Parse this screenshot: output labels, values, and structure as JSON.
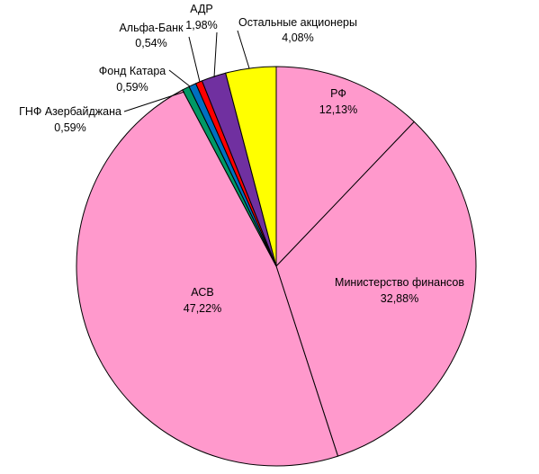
{
  "chart_data": {
    "type": "pie",
    "start_angle": "12 o'clock",
    "direction": "clockwise",
    "slices": [
      {
        "name": "РФ",
        "value": 12.13,
        "label": "12,13%",
        "color": "#FF99CC"
      },
      {
        "name": "Министерство финансов",
        "value": 32.88,
        "label": "32,88%",
        "color": "#FF99CC"
      },
      {
        "name": "АСВ",
        "value": 47.22,
        "label": "47,22%",
        "color": "#FF99CC"
      },
      {
        "name": "ГНФ Азербайджана",
        "value": 0.59,
        "label": "0,59%",
        "color": "#009966"
      },
      {
        "name": "Фонд Катара",
        "value": 0.59,
        "label": "0,59%",
        "color": "#0070C0"
      },
      {
        "name": "Альфа-Банк",
        "value": 0.54,
        "label": "0,54%",
        "color": "#FF0000"
      },
      {
        "name": "АДР",
        "value": 1.98,
        "label": "1,98%",
        "color": "#7030A0"
      },
      {
        "name": "Остальные акционеры",
        "value": 4.08,
        "label": "4,08%",
        "color": "#FFFF00"
      }
    ]
  }
}
